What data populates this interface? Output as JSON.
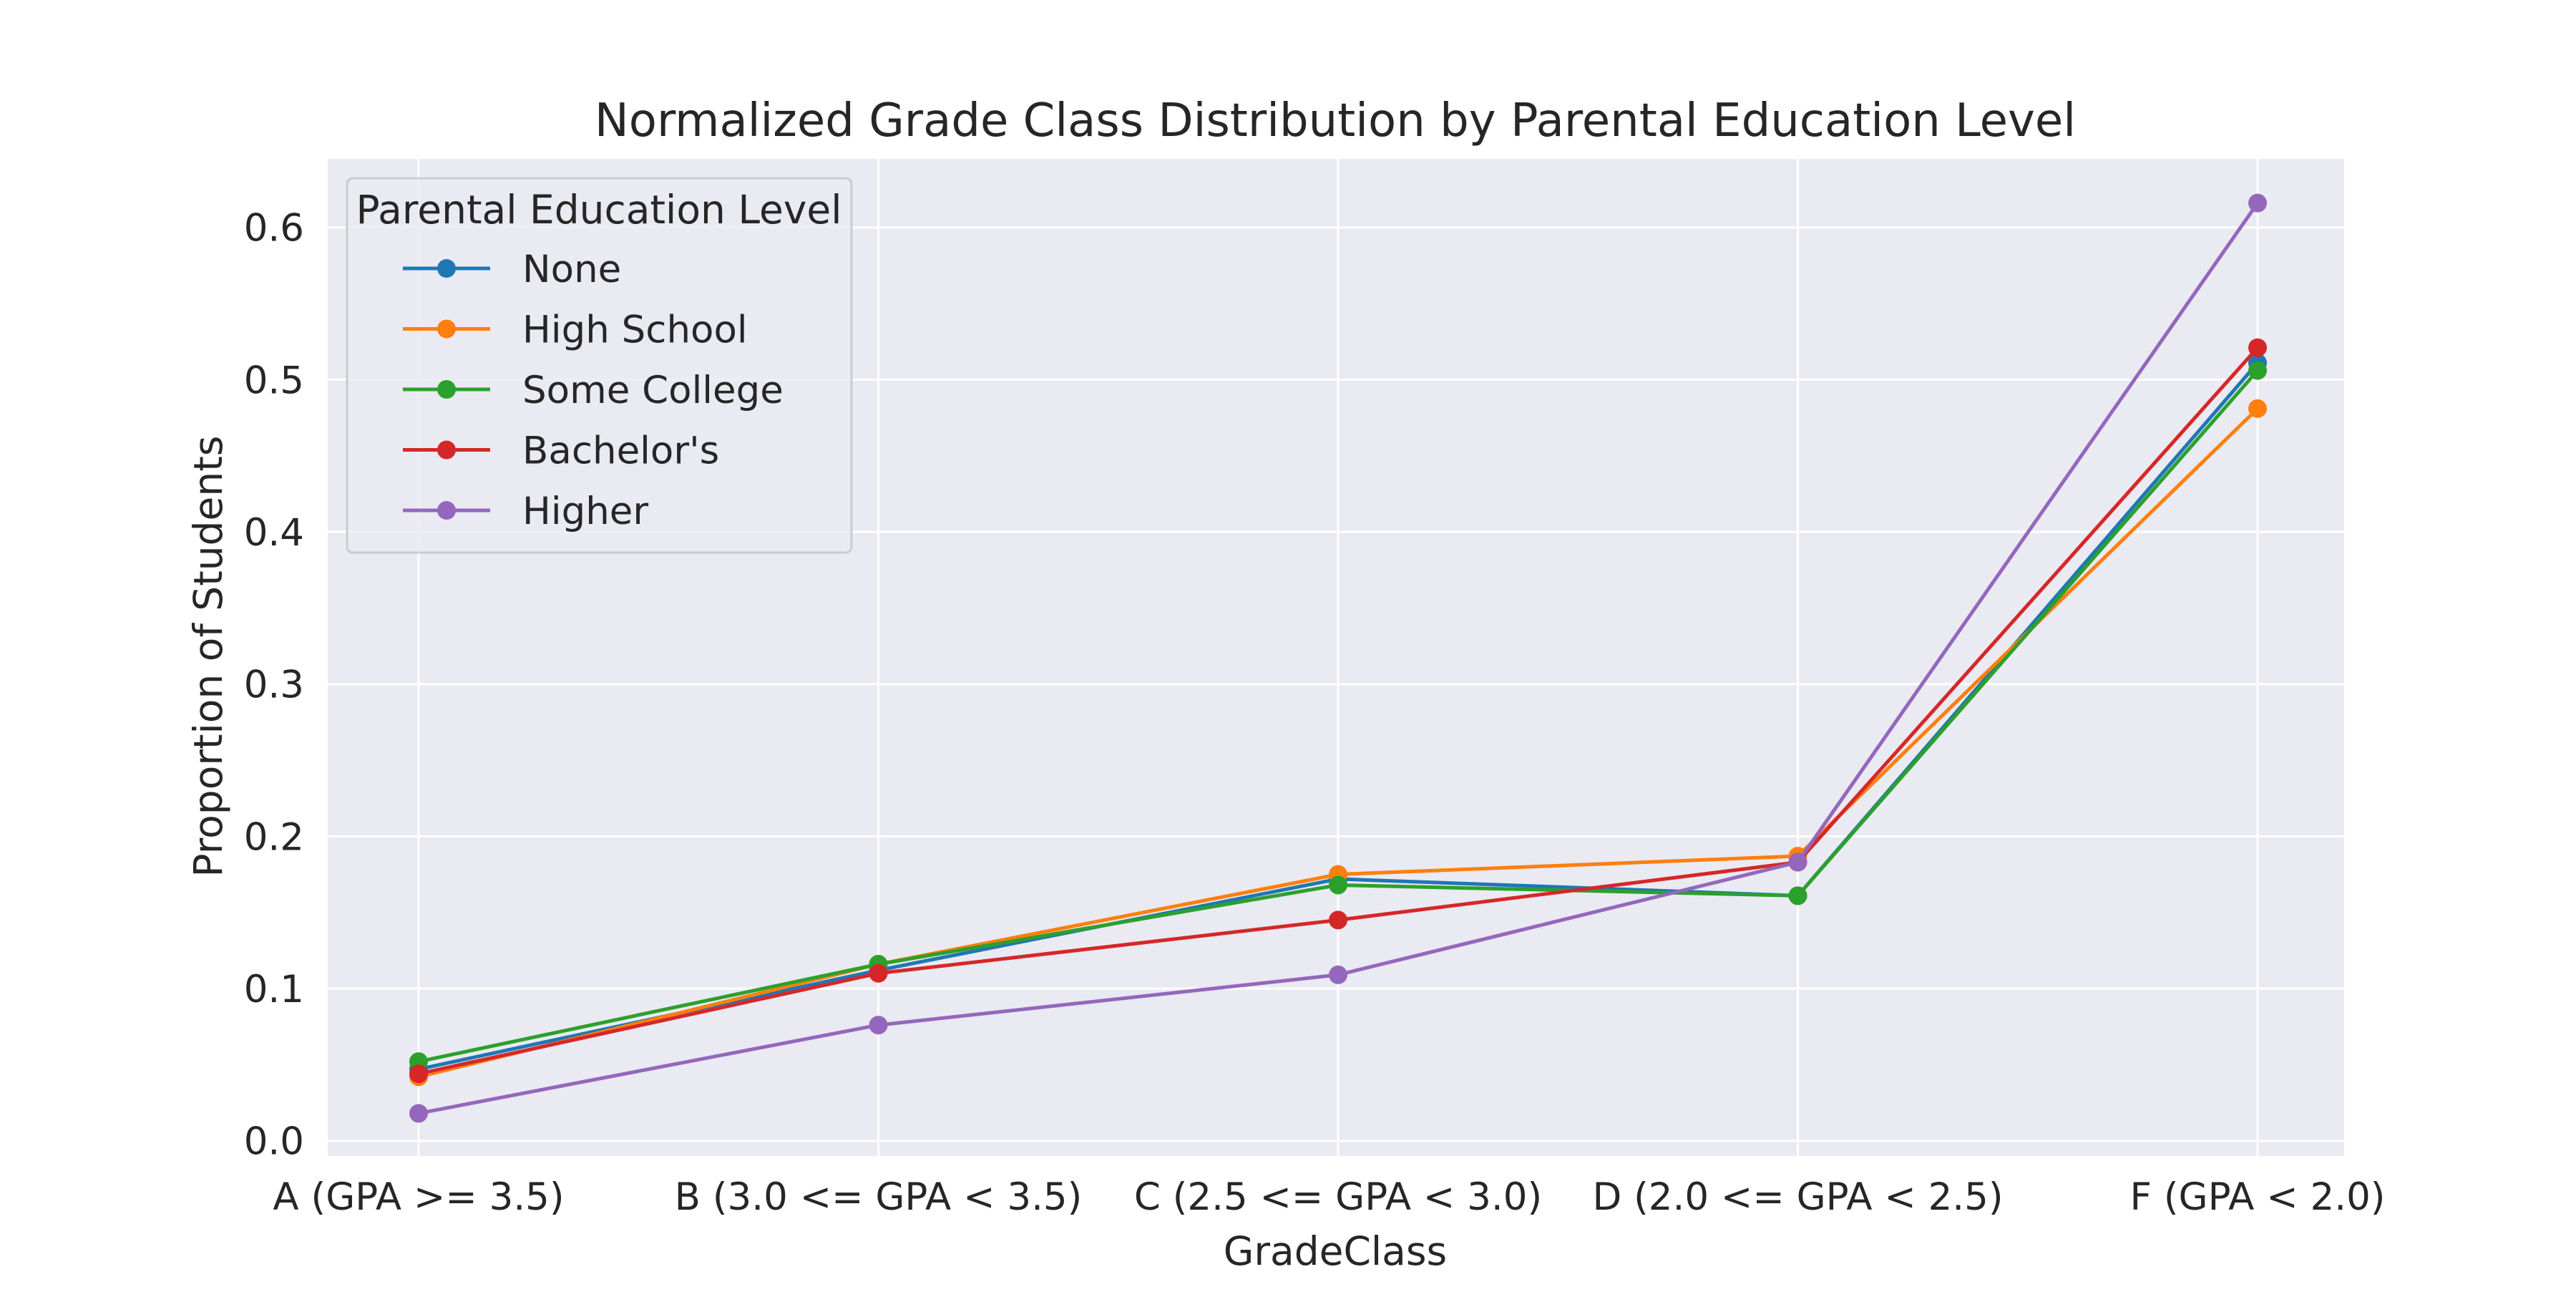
{
  "chart_data": {
    "type": "line",
    "title": "Normalized Grade Class Distribution by Parental Education Level",
    "xlabel": "GradeClass",
    "ylabel": "Proportion of Students",
    "categories": [
      "A (GPA >= 3.5)",
      "B (3.0 <= GPA < 3.5)",
      "C (2.5 <= GPA < 3.0)",
      "D (2.0 <= GPA < 2.5)",
      "F (GPA < 2.0)"
    ],
    "ylim": [
      -0.01,
      0.645
    ],
    "yticks": [
      0.0,
      0.1,
      0.2,
      0.3,
      0.4,
      0.5,
      0.6
    ],
    "ytick_labels": [
      "0.0",
      "0.1",
      "0.2",
      "0.3",
      "0.4",
      "0.5",
      "0.6"
    ],
    "grid": true,
    "legend": {
      "title": "Parental Education Level",
      "position": "top-left"
    },
    "series": [
      {
        "name": "None",
        "color": "#1f77b4",
        "values": [
          0.047,
          0.112,
          0.172,
          0.161,
          0.511
        ]
      },
      {
        "name": "High School",
        "color": "#ff7f0e",
        "values": [
          0.042,
          0.116,
          0.175,
          0.187,
          0.481
        ]
      },
      {
        "name": "Some College",
        "color": "#2ca02c",
        "values": [
          0.052,
          0.116,
          0.168,
          0.161,
          0.506
        ]
      },
      {
        "name": "Bachelor's",
        "color": "#d62728",
        "values": [
          0.044,
          0.11,
          0.145,
          0.183,
          0.521
        ]
      },
      {
        "name": "Higher",
        "color": "#9467bd",
        "values": [
          0.018,
          0.076,
          0.109,
          0.183,
          0.616
        ]
      }
    ],
    "style": {
      "plot_background": "#eaeaf2",
      "grid_color": "#ffffff",
      "text_color": "#262626"
    }
  }
}
